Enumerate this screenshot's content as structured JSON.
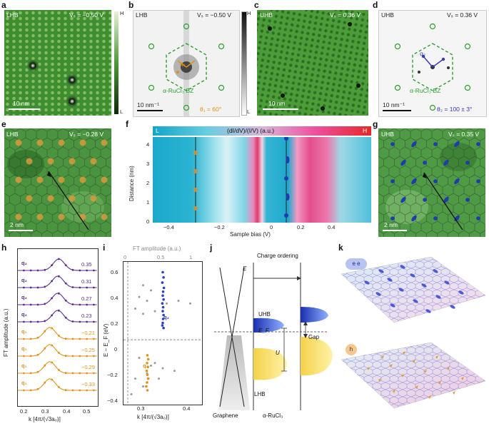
{
  "panels": {
    "a": {
      "label": "a",
      "tag": "LHB",
      "bias": "Vₛ = −0.50 V",
      "scale": "10 nm"
    },
    "b": {
      "label": "b",
      "tag": "LHB",
      "bias": "Vₛ = −0.50 V",
      "scale": "10 nm⁻¹",
      "bz": "α-RuCl₃ BZ",
      "theta": "θ₁ = 60°",
      "q": "q₁"
    },
    "colorbar_ab": {
      "high": "H",
      "low": "L"
    },
    "colorbar_cd": {
      "high": "H",
      "low": "L"
    },
    "c": {
      "label": "c",
      "tag": "UHB",
      "bias": "Vₛ = 0.36 V",
      "scale": "10 nm"
    },
    "d": {
      "label": "d",
      "tag": "UHB",
      "bias": "Vₛ = 0.36 V",
      "scale": "10 nm⁻¹",
      "bz": "α-RuCl₃ BZ",
      "theta": "θ₂ = 100 ± 3°",
      "q": "q₂"
    },
    "e": {
      "label": "e",
      "tag": "LHB",
      "bias": "Vₛ = −0.28 V",
      "scale": "2 nm"
    },
    "f": {
      "label": "f",
      "colorbar_title": "(dI/dV)/(I/V) (a.u.)",
      "low": "L",
      "high": "H",
      "ylabel": "Distance (nm)",
      "xlabel": "Sample bias (V)",
      "yticks": [
        "0",
        "1",
        "2",
        "3",
        "4"
      ],
      "xticks": [
        "−0.4",
        "−0.2",
        "0",
        "0.2",
        "0.4"
      ]
    },
    "g": {
      "label": "g",
      "tag": "UHB",
      "bias": "Vₛ = 0.35 V",
      "scale": "2 nm"
    },
    "h": {
      "label": "h",
      "ylabel": "FT amplitude (a.u.)",
      "xlabel": "k [4π/(√3a₀)]",
      "xticks": [
        "0.2",
        "0.3",
        "0.4",
        "0.5"
      ],
      "curves": [
        {
          "tag": "q₂",
          "value": "0.35",
          "color": "#5a2d8c"
        },
        {
          "tag": "q₂",
          "value": "0.31",
          "color": "#5a2d8c"
        },
        {
          "tag": "q₂",
          "value": "0.27",
          "color": "#5a2d8c"
        },
        {
          "tag": "q₂",
          "value": "0.23",
          "color": "#5a2d8c"
        },
        {
          "tag": "q₁",
          "value": "−0.21",
          "color": "#e0921c"
        },
        {
          "tag": "q₁",
          "value": "−0.25",
          "color": "#e0921c"
        },
        {
          "tag": "q₁",
          "value": "−0.29",
          "color": "#e0921c"
        },
        {
          "tag": "q₁",
          "value": "−0.33",
          "color": "#e0921c"
        }
      ]
    },
    "i": {
      "label": "i",
      "top_label": "FT amplitude (a.u.)",
      "top_ticks": [
        "0",
        "0.5",
        "1"
      ],
      "ylabel": "E − E_F (eV)",
      "xlabel": "k [4π/(√3a₀)]",
      "yticks": [
        "0.6",
        "0.4",
        "0.2",
        "0",
        "−0.2",
        "−0.4"
      ],
      "xticks": [
        "0.3",
        "0.4"
      ],
      "q2": "q₂",
      "q1": "q₁"
    },
    "j": {
      "label": "j",
      "charge_ordering": "Charge ordering",
      "E": "E",
      "EF": "E_F",
      "UHB": "UHB",
      "LHB": "LHB",
      "U": "U",
      "Gap": "Gap",
      "graphene": "Graphene",
      "rucl": "α-RuCl₃"
    },
    "k": {
      "label": "k",
      "top_badge": "e e",
      "bottom_badge": "h"
    }
  },
  "chart_data": [
    {
      "type": "line",
      "title": "",
      "xlabel": "k [4π/(√3a₀)]",
      "ylabel": "FT amplitude (a.u.)",
      "xlim": [
        0.15,
        0.55
      ],
      "series": [
        {
          "name": "0.35",
          "peak_k": 0.355
        },
        {
          "name": "0.31",
          "peak_k": 0.35
        },
        {
          "name": "0.27",
          "peak_k": 0.35
        },
        {
          "name": "0.23",
          "peak_k": 0.35
        },
        {
          "name": "−0.21",
          "peak_k": 0.31
        },
        {
          "name": "−0.25",
          "peak_k": 0.31
        },
        {
          "name": "−0.29",
          "peak_k": 0.31
        },
        {
          "name": "−0.33",
          "peak_k": 0.31
        }
      ]
    },
    {
      "type": "scatter",
      "title": "",
      "xlabel": "k [4π/(√3a₀)]",
      "ylabel": "E − E_F (eV)",
      "ylim": [
        -0.5,
        0.6
      ],
      "xlim": [
        0.25,
        0.45
      ],
      "series": [
        {
          "name": "q₂",
          "points": [
            [
              0.35,
              0.52
            ],
            [
              0.352,
              0.48
            ],
            [
              0.349,
              0.44
            ],
            [
              0.353,
              0.4
            ],
            [
              0.351,
              0.37
            ],
            [
              0.35,
              0.34
            ],
            [
              0.352,
              0.31
            ],
            [
              0.349,
              0.28
            ],
            [
              0.351,
              0.25
            ],
            [
              0.35,
              0.22
            ],
            [
              0.352,
              0.19
            ],
            [
              0.351,
              0.16
            ],
            [
              0.35,
              0.13
            ],
            [
              0.349,
              0.11
            ],
            [
              0.352,
              0.09
            ]
          ]
        },
        {
          "name": "q₁",
          "points": [
            [
              0.311,
              -0.12
            ],
            [
              0.313,
              -0.15
            ],
            [
              0.31,
              -0.18
            ],
            [
              0.312,
              -0.21
            ],
            [
              0.309,
              -0.24
            ],
            [
              0.311,
              -0.27
            ],
            [
              0.313,
              -0.3
            ],
            [
              0.31,
              -0.33
            ],
            [
              0.308,
              -0.36
            ],
            [
              0.311,
              -0.39
            ]
          ]
        }
      ]
    }
  ]
}
